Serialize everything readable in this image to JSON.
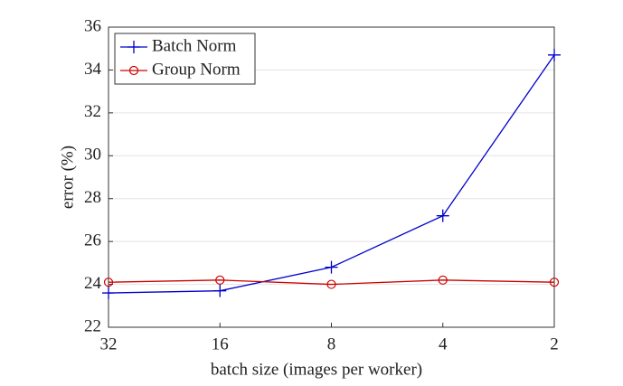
{
  "chart_data": {
    "type": "line",
    "x_label": "batch size (images per worker)",
    "y_label": "error (%)",
    "categories": [
      "32",
      "16",
      "8",
      "4",
      "2"
    ],
    "series": [
      {
        "name": "Batch Norm",
        "color": "#0000cc",
        "marker": "+",
        "values": [
          23.6,
          23.7,
          24.8,
          27.2,
          34.7
        ]
      },
      {
        "name": "Group Norm",
        "color": "#cc0000",
        "marker": "o",
        "values": [
          24.1,
          24.2,
          24.0,
          24.2,
          24.1
        ]
      }
    ],
    "ylim": [
      22,
      36
    ],
    "yticks": [
      22,
      24,
      26,
      28,
      30,
      32,
      34,
      36
    ],
    "grid": true,
    "legend": "upper left"
  }
}
